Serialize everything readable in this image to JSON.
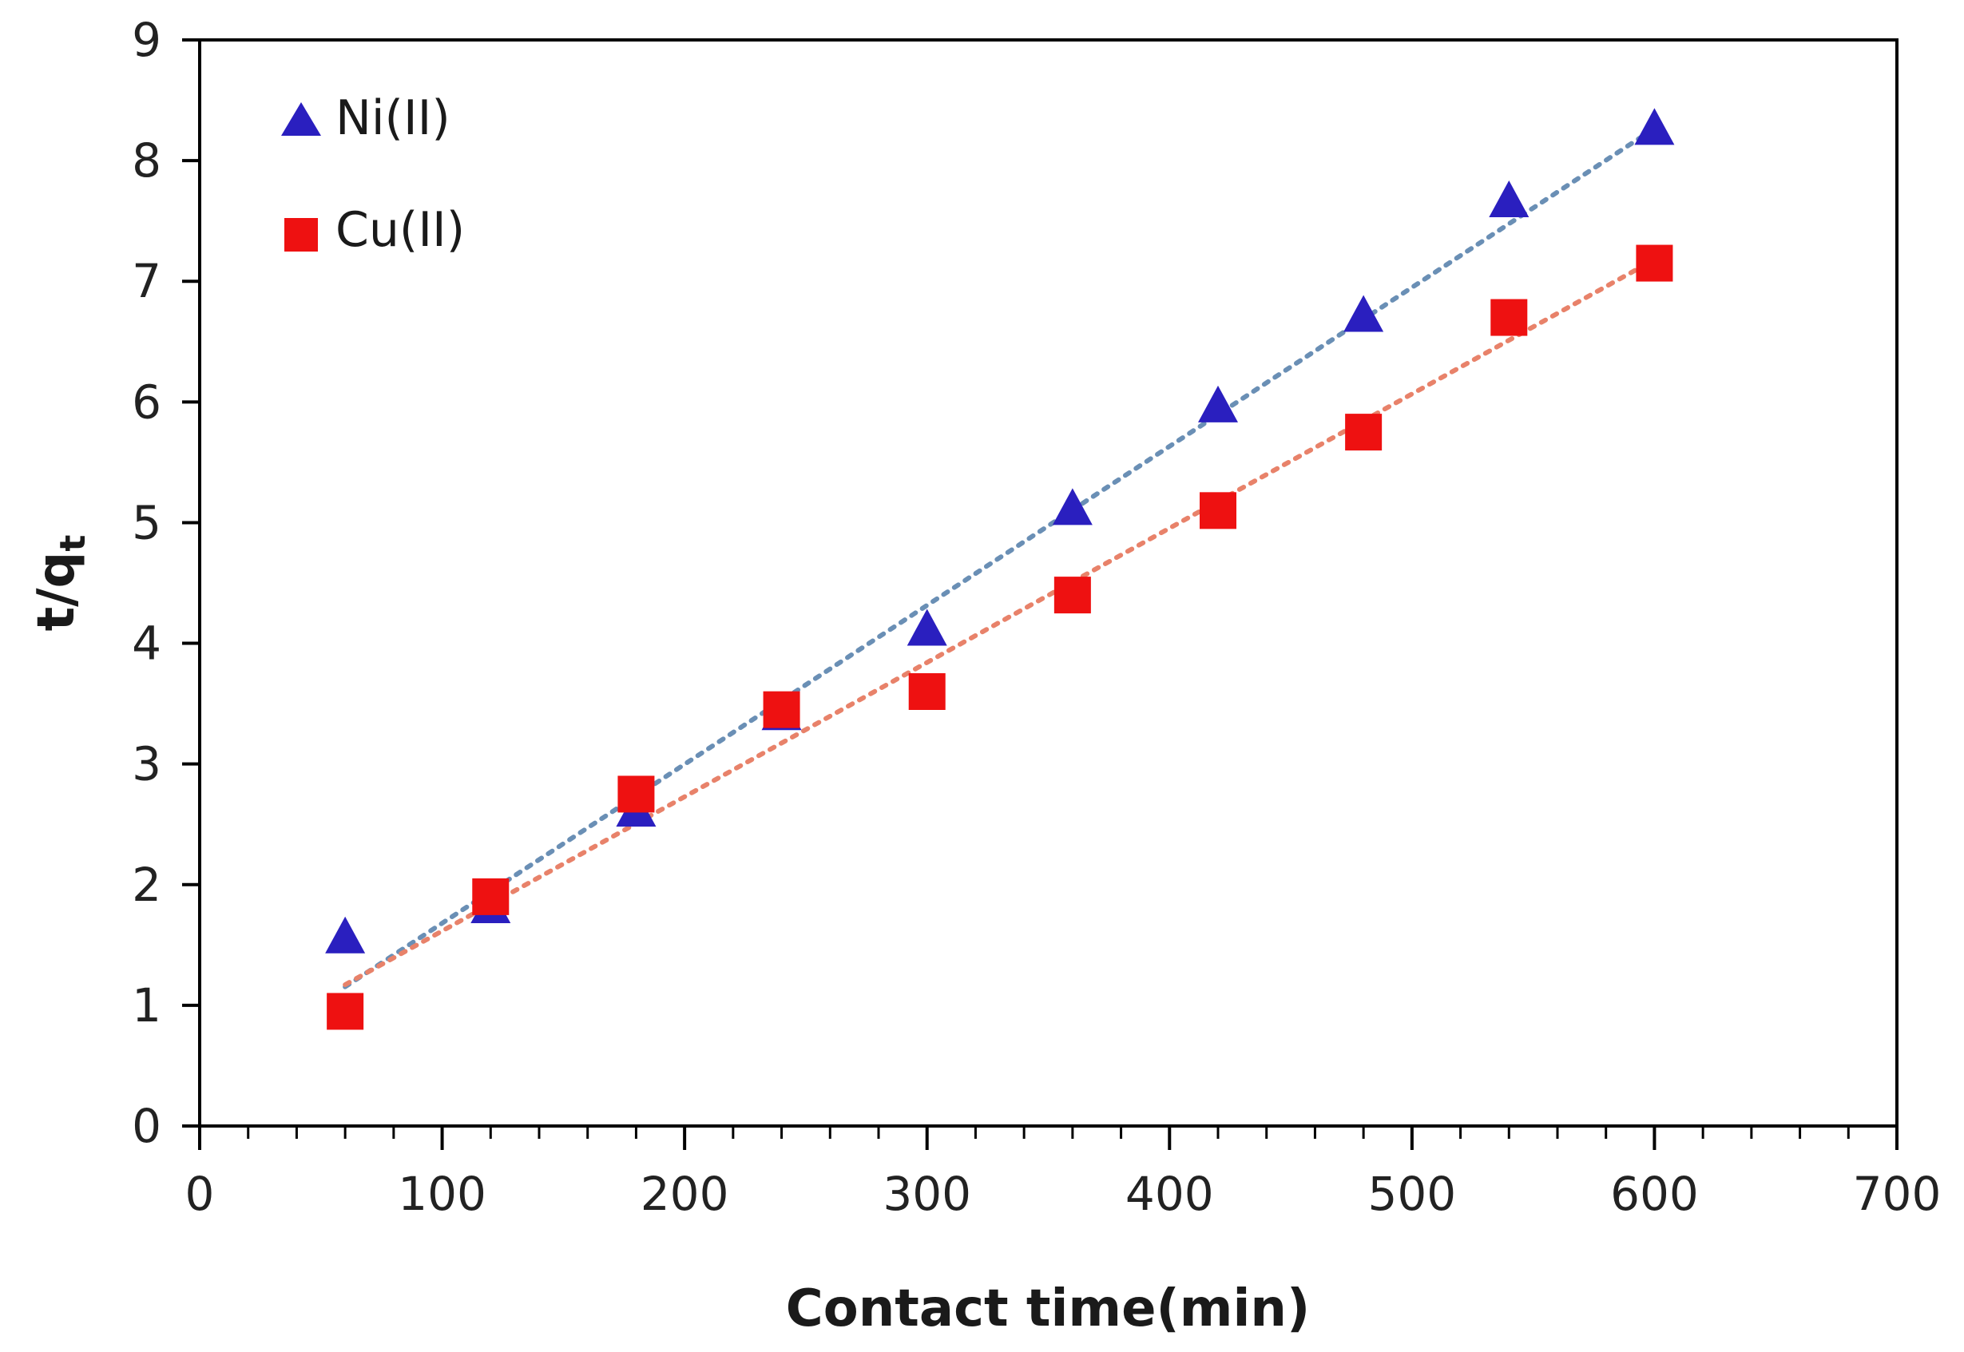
{
  "chart_data": {
    "type": "scatter",
    "xlabel": "Contact time(min)",
    "ylabel": {
      "main": "t/q",
      "sub": "t"
    },
    "xlim": [
      0,
      700
    ],
    "ylim": [
      0,
      9
    ],
    "xticks": [
      0,
      100,
      200,
      300,
      400,
      500,
      600,
      700
    ],
    "yticks": [
      0,
      1,
      2,
      3,
      4,
      5,
      6,
      7,
      8,
      9
    ],
    "grid": false,
    "legend_position": "top-left",
    "series": [
      {
        "name": "Ni(II)",
        "marker": "triangle",
        "color": "#2a1fbf",
        "trendline": {
          "style": "dotted",
          "color": "#6a8fb5",
          "x_range": [
            60,
            600
          ]
        },
        "x": [
          60,
          120,
          180,
          240,
          300,
          360,
          420,
          480,
          540,
          600
        ],
        "y": [
          1.55,
          1.8,
          2.6,
          3.4,
          4.1,
          5.1,
          5.95,
          6.7,
          7.65,
          8.25
        ]
      },
      {
        "name": "Cu(II)",
        "marker": "square",
        "color": "#ee1111",
        "trendline": {
          "style": "dotted",
          "color": "#e8826a",
          "x_range": [
            60,
            600
          ]
        },
        "x": [
          60,
          120,
          180,
          240,
          300,
          360,
          420,
          480,
          540,
          600
        ],
        "y": [
          0.95,
          1.9,
          2.75,
          3.45,
          3.6,
          4.4,
          5.1,
          5.75,
          6.7,
          7.15
        ]
      }
    ]
  }
}
